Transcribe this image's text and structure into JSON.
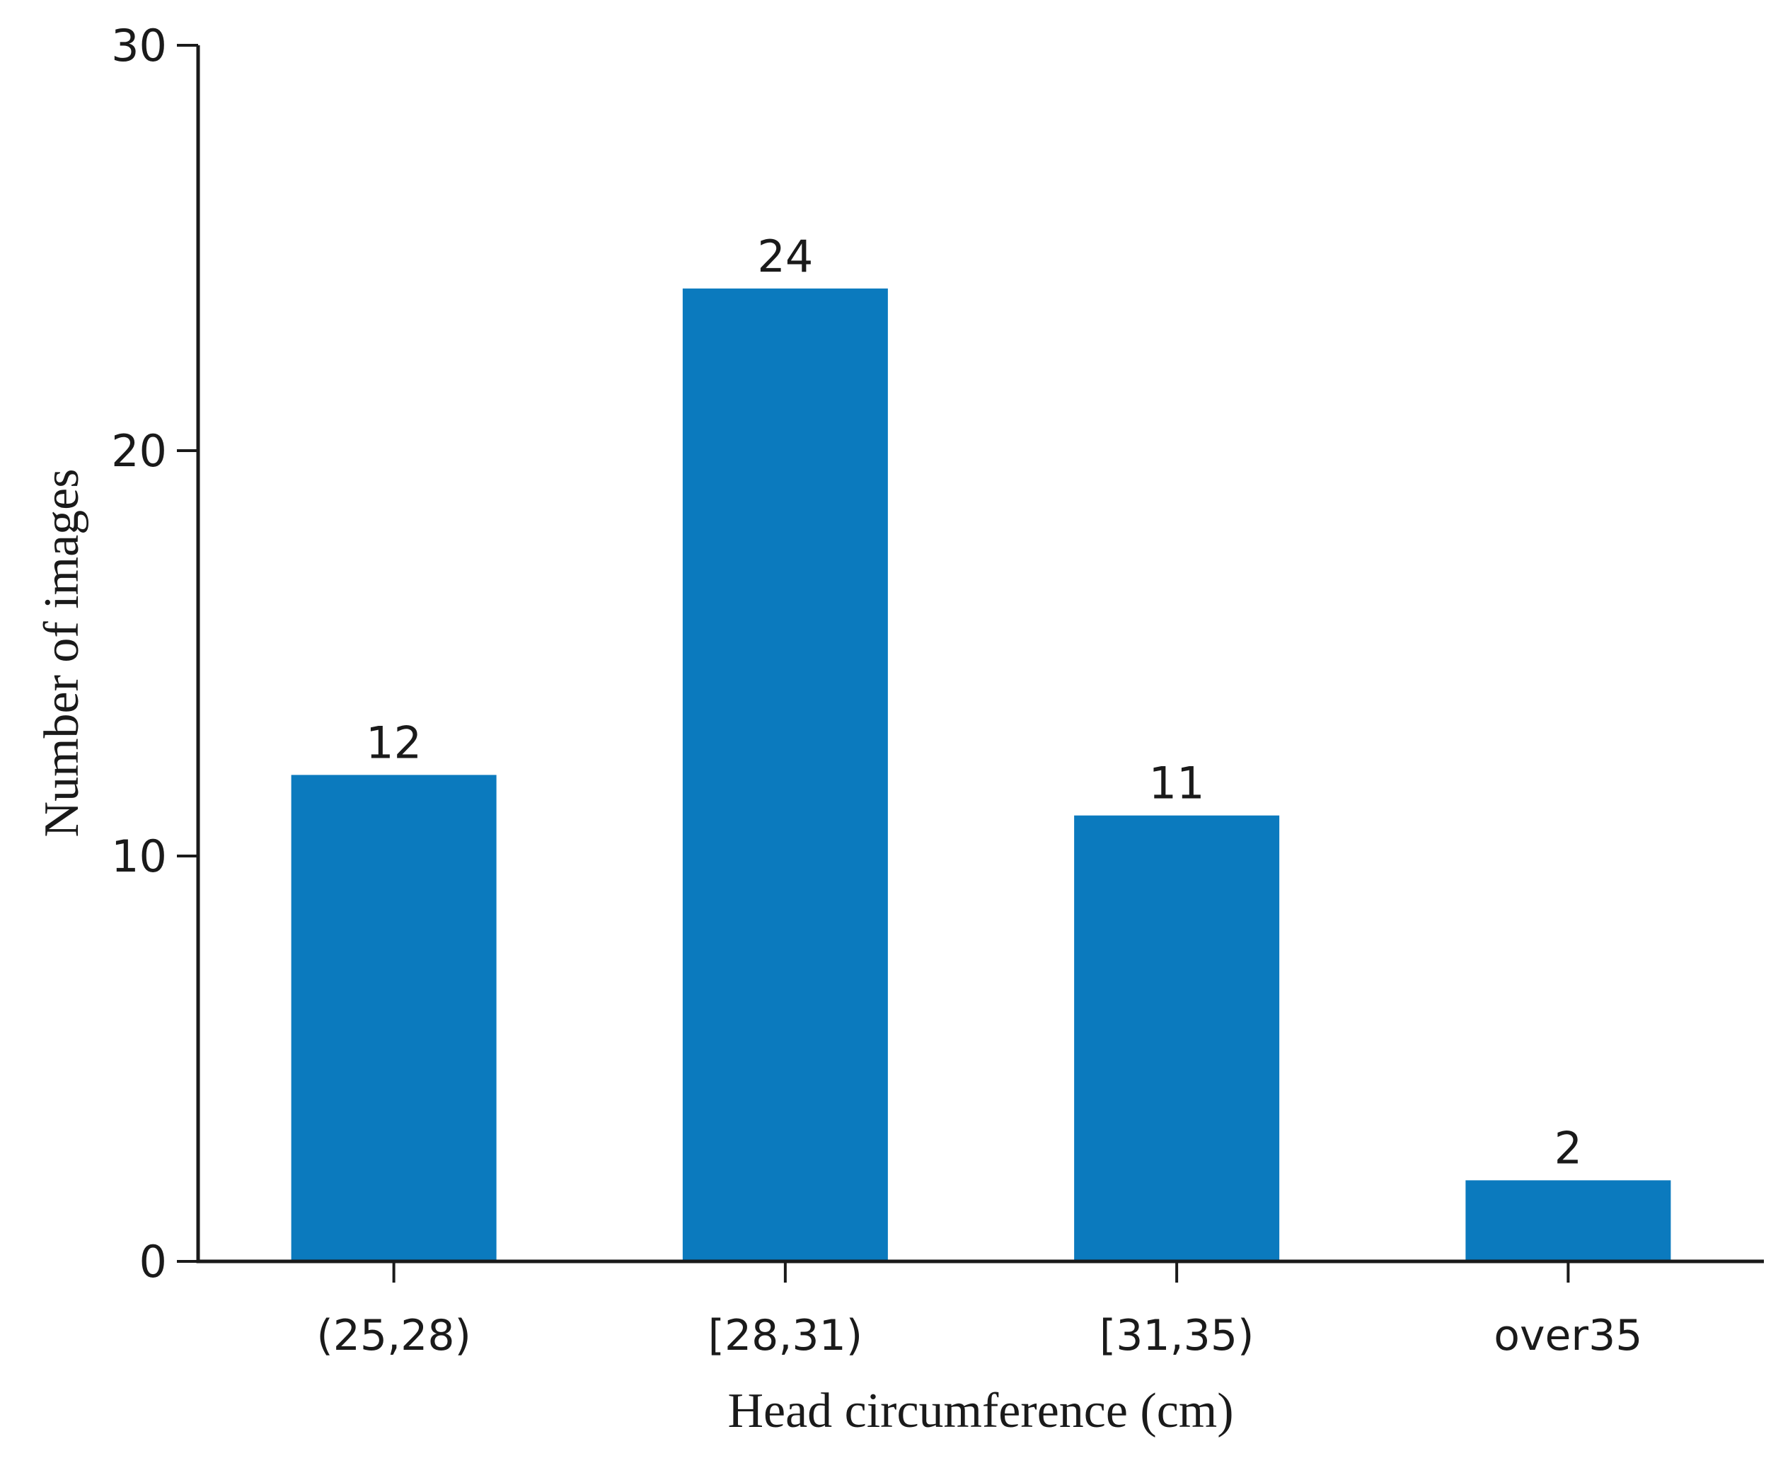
{
  "chart_data": {
    "type": "bar",
    "title": "",
    "categories": [
      "(25,28)",
      "[28,31)",
      "[31,35)",
      "over35"
    ],
    "values": [
      12,
      24,
      11,
      2
    ],
    "bar_value_labels": [
      "12",
      "24",
      "11",
      "2"
    ],
    "xlabel": "Head circumference (cm)",
    "ylabel": "Number of images",
    "ylim": [
      0,
      30
    ],
    "yticks": [
      0,
      10,
      20,
      30
    ],
    "ytick_labels": [
      "0",
      "10",
      "20",
      "30"
    ],
    "grid": false,
    "legend": null,
    "bar_color": "#0b7abe",
    "axis_color": "#1a1a1a",
    "background_color": "#ffffff"
  }
}
